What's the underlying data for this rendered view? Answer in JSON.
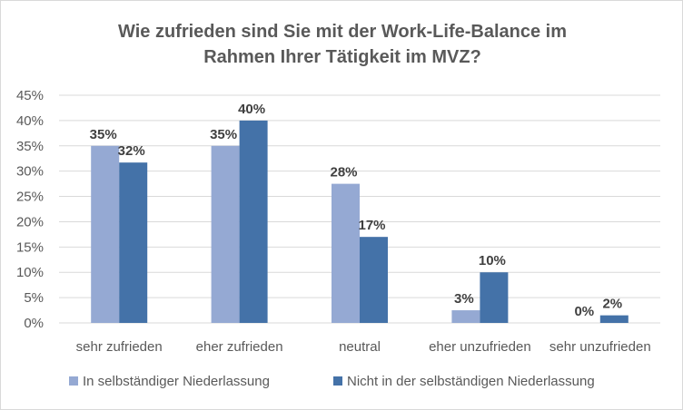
{
  "chart_data": {
    "type": "bar",
    "title_lines": [
      "Wie zufrieden sind Sie mit der Work-Life-Balance im",
      "Rahmen Ihrer Tätigkeit im MVZ?"
    ],
    "categories": [
      "sehr zufrieden",
      "eher zufrieden",
      "neutral",
      "eher unzufrieden",
      "sehr unzufrieden"
    ],
    "series": [
      {
        "name": "In selbständiger Niederlassung",
        "values": [
          35,
          35,
          27.5,
          2.5,
          0
        ],
        "labels": [
          "35%",
          "35%",
          "28%",
          "3%",
          "0%"
        ],
        "color": "#95a9d3"
      },
      {
        "name": "Nicht in der selbständigen Niederlassung",
        "values": [
          31.7,
          40,
          17,
          10,
          1.5
        ],
        "labels": [
          "32%",
          "40%",
          "17%",
          "10%",
          "2%"
        ],
        "color": "#4472a8"
      }
    ],
    "ylim": [
      0,
      45
    ],
    "yticks": [
      "0%",
      "5%",
      "10%",
      "15%",
      "20%",
      "25%",
      "30%",
      "35%",
      "40%",
      "45%"
    ],
    "ytick_values": [
      0,
      5,
      10,
      15,
      20,
      25,
      30,
      35,
      40,
      45
    ],
    "grid": true,
    "legend_position": "bottom"
  }
}
